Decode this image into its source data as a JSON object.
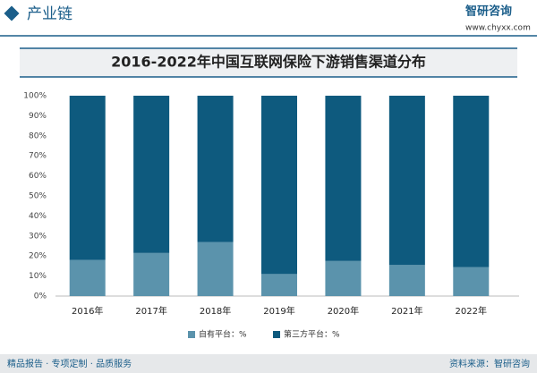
{
  "header": {
    "section": "产业链",
    "logo": "智研咨询",
    "url": "www.chyxx.com"
  },
  "chart_data": {
    "type": "stacked_bar",
    "title": "2016-2022年中国互联网保险下游销售渠道分布",
    "categories": [
      "2016年",
      "2017年",
      "2018年",
      "2019年",
      "2020年",
      "2021年",
      "2022年"
    ],
    "series": [
      {
        "name": "自有平台：%",
        "color": "#5b93ac",
        "values": [
          18,
          21.5,
          27,
          11,
          17.5,
          15.5,
          14.5
        ]
      },
      {
        "name": "第三方平台：%",
        "color": "#0e5a7e",
        "values": [
          82,
          78.5,
          73,
          89,
          82.5,
          84.5,
          85.5
        ]
      }
    ],
    "ylim": [
      0,
      100
    ],
    "yticks": [
      {
        "value": 0,
        "label": "0%"
      },
      {
        "value": 10,
        "label": "10%"
      },
      {
        "value": 20,
        "label": "20%"
      },
      {
        "value": 30,
        "label": "30%"
      },
      {
        "value": 40,
        "label": "40%"
      },
      {
        "value": 50,
        "label": "50%"
      },
      {
        "value": 60,
        "label": "60%"
      },
      {
        "value": 70,
        "label": "70%"
      },
      {
        "value": 80,
        "label": "80%"
      },
      {
        "value": 90,
        "label": "90%"
      },
      {
        "value": 100,
        "label": "100%"
      }
    ],
    "grid": false,
    "legend": "bottom"
  },
  "footer": {
    "left": "精品报告 · 专项定制 · 品质服务",
    "right": "资料来源：智研咨询"
  }
}
